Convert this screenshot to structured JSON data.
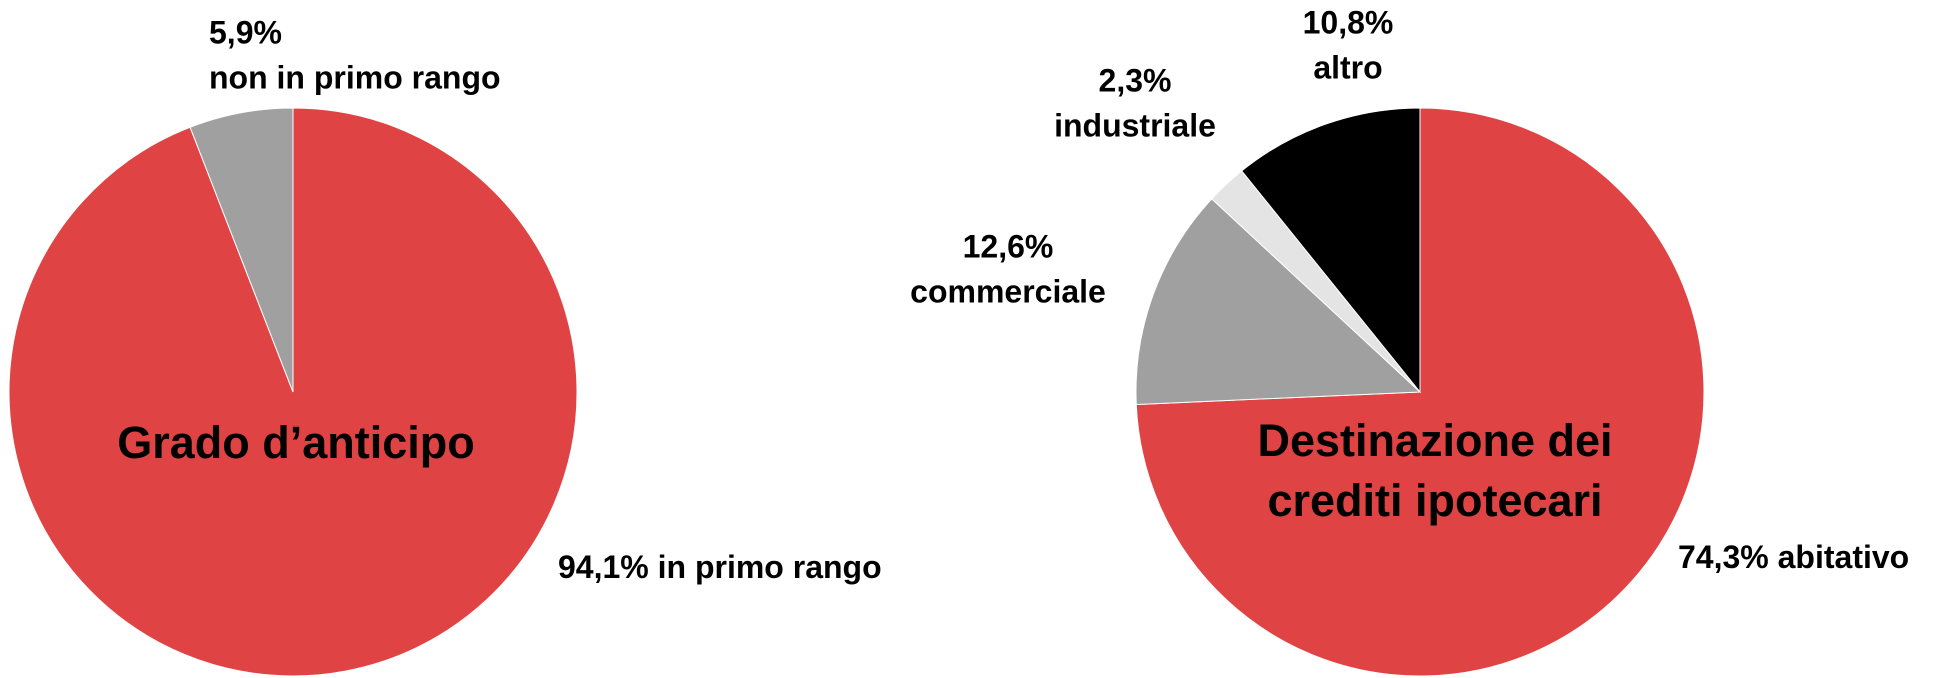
{
  "chart_data": [
    {
      "type": "pie",
      "title": [
        "Grado d’anticipo"
      ],
      "categories": [
        "in primo rango",
        "non in primo rango"
      ],
      "values": [
        94.1,
        5.9
      ],
      "value_labels": [
        "94,1%",
        "5,9%"
      ],
      "colors": [
        "#e04343",
        "#a0a0a0"
      ]
    },
    {
      "type": "pie",
      "title": [
        "Destinazione dei",
        "crediti ipotecari"
      ],
      "categories": [
        "abitativo",
        "commerciale",
        "industriale",
        "altro"
      ],
      "values": [
        74.3,
        12.6,
        2.3,
        10.8
      ],
      "value_labels": [
        "74,3%",
        "12,6%",
        "2,3%",
        "10,8%"
      ],
      "colors": [
        "#e04343",
        "#a0a0a0",
        "#e4e4e4",
        "#000000"
      ]
    }
  ]
}
